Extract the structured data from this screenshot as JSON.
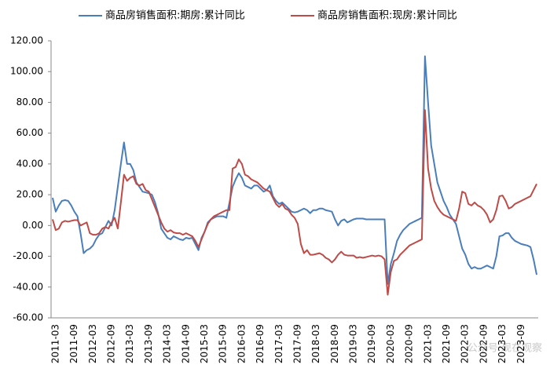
{
  "chart_data": {
    "type": "line",
    "categories": [
      null,
      "2011-03",
      null,
      null,
      null,
      null,
      null,
      "2011-09",
      null,
      null,
      null,
      null,
      null,
      "2012-03",
      null,
      null,
      null,
      null,
      null,
      "2012-09",
      null,
      null,
      null,
      null,
      null,
      "2013-03",
      null,
      null,
      null,
      null,
      null,
      "2013-09",
      null,
      null,
      null,
      null,
      null,
      "2014-03",
      null,
      null,
      null,
      null,
      null,
      "2014-09",
      null,
      null,
      null,
      null,
      null,
      "2015-03",
      null,
      null,
      null,
      null,
      null,
      "2015-09",
      null,
      null,
      null,
      null,
      null,
      "2016-03",
      null,
      null,
      null,
      null,
      null,
      "2016-09",
      null,
      null,
      null,
      null,
      null,
      "2017-03",
      null,
      null,
      null,
      null,
      null,
      "2017-09",
      null,
      null,
      null,
      null,
      null,
      "2018-03",
      null,
      null,
      null,
      null,
      null,
      "2018-09",
      null,
      null,
      null,
      null,
      null,
      "2019-03",
      null,
      null,
      null,
      null,
      null,
      "2019-09",
      null,
      null,
      null,
      null,
      null,
      "2020-03",
      null,
      null,
      null,
      null,
      null,
      "2020-09",
      null,
      null,
      null,
      null,
      null,
      "2021-03",
      null,
      null,
      null,
      null,
      null,
      "2021-09",
      null,
      null,
      null,
      null,
      null,
      "2022-03",
      null,
      null,
      null,
      null,
      null,
      "2022-09",
      null,
      null,
      null,
      null,
      null,
      "2023-03",
      null,
      null,
      null,
      null,
      null,
      "2023-09",
      null,
      null,
      null,
      null,
      null
    ],
    "series": [
      {
        "name": "商品房销售面积:期房:累计同比",
        "color": "#4a7ebb",
        "values": [
          18,
          9,
          13,
          16,
          16.5,
          16,
          13,
          9,
          6,
          -5,
          -18,
          -16,
          -15,
          -13,
          -9,
          -6,
          -5,
          -1,
          3,
          0,
          10,
          25,
          40,
          54,
          40,
          40,
          36,
          28,
          25,
          22,
          21.5,
          21,
          20,
          15,
          8,
          -2,
          -5,
          -8,
          -9,
          -7,
          -8,
          -9,
          -9.5,
          -8,
          -8.5,
          -8,
          -12,
          -16,
          -8,
          -4,
          2,
          4,
          5,
          6,
          6,
          6,
          5,
          15,
          25,
          30,
          34,
          31,
          26,
          25,
          24,
          26,
          26,
          24,
          22,
          23,
          26,
          19,
          16,
          14,
          15,
          13,
          11,
          9,
          8.5,
          9,
          10,
          11,
          10,
          8,
          10,
          10,
          11,
          11,
          10,
          9.5,
          9,
          4,
          0,
          3,
          4,
          2,
          3,
          4,
          4.5,
          4.5,
          4.5,
          4,
          4,
          4,
          4,
          4,
          4,
          4,
          -38,
          -25,
          -18,
          -10,
          -6,
          -3,
          -1,
          1,
          2,
          3,
          4,
          5,
          110,
          80,
          52,
          40,
          28,
          22,
          16,
          12,
          7,
          4,
          1,
          -7,
          -15,
          -19,
          -25,
          -28,
          -27,
          -28,
          -28,
          -27,
          -26,
          -27,
          -28,
          -20,
          -7,
          -6.5,
          -5,
          -5,
          -8,
          -10,
          -11,
          -12,
          -12.5,
          -13,
          -14,
          -22,
          -32
        ]
      },
      {
        "name": "商品房销售面积:现房:累计同比",
        "color": "#be4b48",
        "values": [
          4,
          -3,
          -2,
          2,
          3,
          2.5,
          3,
          3.5,
          3.5,
          0,
          1,
          2,
          -5,
          -6,
          -6,
          -5,
          -2,
          -1,
          -2,
          2,
          5,
          -2,
          15,
          33,
          29,
          31,
          32,
          27,
          26,
          27,
          23,
          22,
          17,
          12,
          7,
          2,
          -2,
          -4,
          -3,
          -4.5,
          -5,
          -5,
          -6,
          -5,
          -6,
          -7,
          -10,
          -14,
          -9,
          -4,
          1,
          4,
          6,
          7,
          8,
          9,
          10,
          10,
          37,
          38,
          43,
          40,
          33,
          32,
          30,
          29,
          28,
          26,
          24,
          23,
          22,
          18,
          14,
          12,
          14,
          11,
          10,
          7,
          5,
          1,
          -12,
          -18,
          -16,
          -19,
          -19,
          -18.5,
          -18,
          -19,
          -21,
          -22,
          -24,
          -22,
          -19,
          -17,
          -19,
          -19.5,
          -19.5,
          -19.5,
          -21,
          -20.5,
          -21,
          -20.5,
          -20,
          -19.5,
          -20,
          -19.5,
          -20,
          -22,
          -45,
          -30,
          -23,
          -22,
          -19,
          -17,
          -15,
          -13,
          -12,
          -11,
          -10,
          -9,
          75,
          37,
          24,
          16,
          12,
          9,
          7,
          6,
          5,
          4,
          3,
          11,
          22,
          21,
          14,
          13,
          15,
          13,
          12,
          10,
          7,
          2,
          4,
          10,
          19,
          19.5,
          16,
          11,
          12,
          14,
          15,
          16,
          17,
          18,
          19,
          23,
          27
        ]
      }
    ],
    "ylim": [
      -60,
      120
    ],
    "yticks": [
      {
        "value": 120,
        "label": "120.00"
      },
      {
        "value": 100,
        "label": "100.00"
      },
      {
        "value": 80,
        "label": "80.00"
      },
      {
        "value": 60,
        "label": "60.00"
      },
      {
        "value": 40,
        "label": "40.00"
      },
      {
        "value": 20,
        "label": "20.00"
      },
      {
        "value": 0,
        "label": "0.00"
      },
      {
        "value": -20,
        "label": "-20.00"
      },
      {
        "value": -40,
        "label": "-40.00"
      },
      {
        "value": -60,
        "label": "-60.00"
      }
    ],
    "grid": false,
    "watermark": "公众号·现在观察"
  }
}
